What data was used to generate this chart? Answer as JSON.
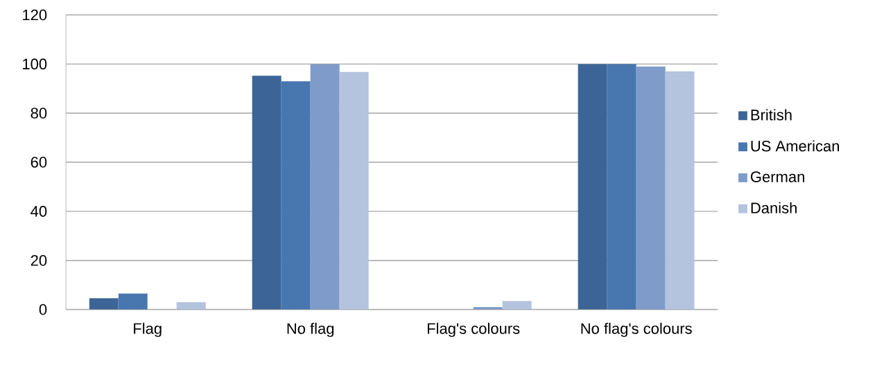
{
  "chart_data": {
    "type": "bar",
    "categories": [
      "Flag",
      "No flag",
      "Flag's colours",
      "No flag's colours"
    ],
    "series": [
      {
        "name": "British",
        "color": "#3c6496",
        "values": [
          4.6,
          95.2,
          0,
          100
        ]
      },
      {
        "name": "US American",
        "color": "#4876af",
        "values": [
          6.5,
          93,
          0,
          100
        ]
      },
      {
        "name": "German",
        "color": "#7f9bc9",
        "values": [
          0,
          100,
          1,
          99
        ]
      },
      {
        "name": "Danish",
        "color": "#b4c3de",
        "values": [
          3,
          96.8,
          3.5,
          97
        ]
      }
    ],
    "ylim": [
      0,
      120
    ],
    "yticks": [
      0,
      20,
      40,
      60,
      80,
      100,
      120
    ],
    "grid": "y",
    "legend": "right"
  }
}
